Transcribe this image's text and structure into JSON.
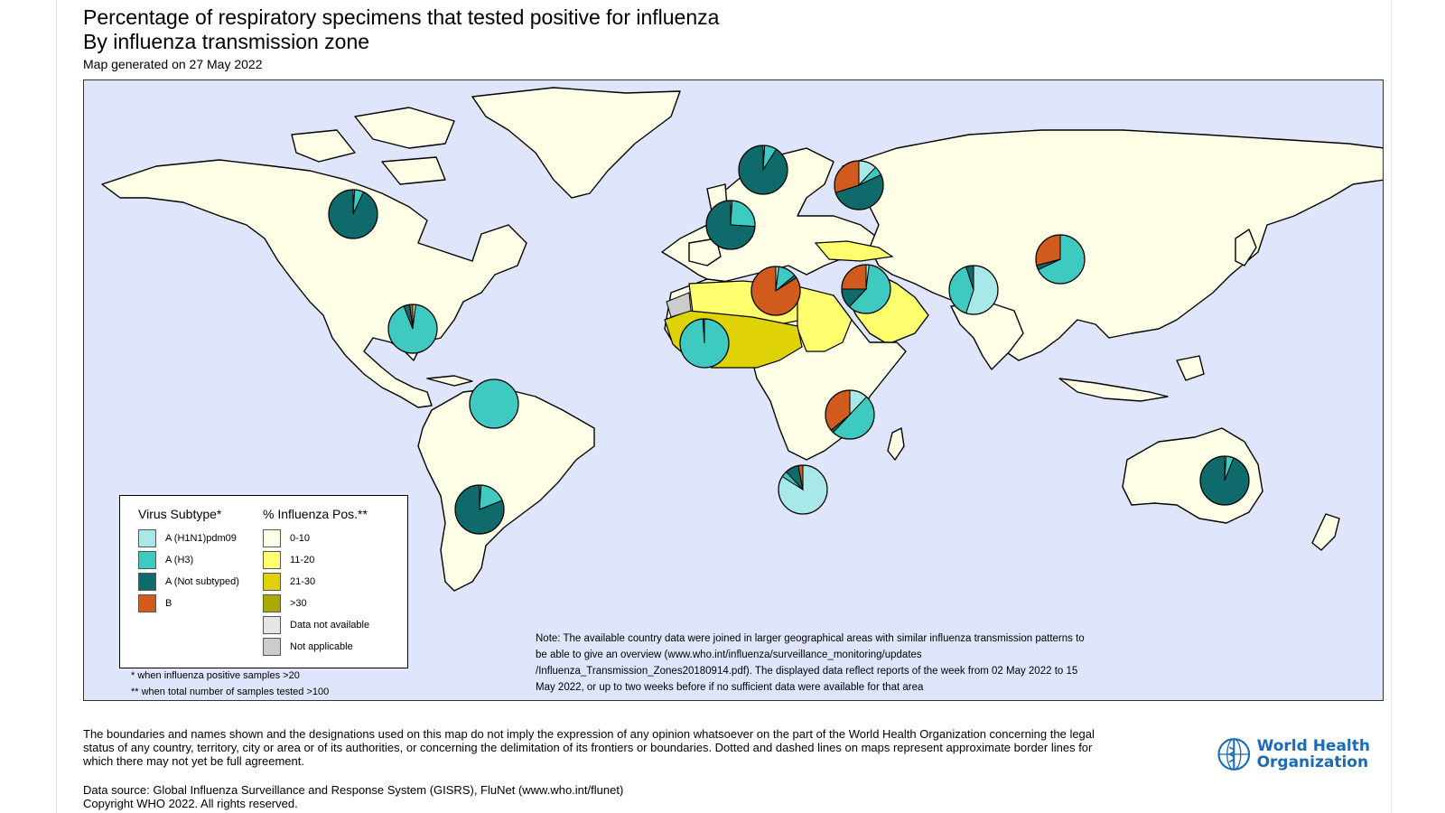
{
  "header": {
    "title_line1": "Percentage of respiratory specimens that tested positive for influenza",
    "title_line2": "By influenza transmission zone",
    "generated": "Map generated on 27 May 2022"
  },
  "colors": {
    "ocean": "#dfe6fb",
    "land_0_10": "#fefde5",
    "pos_11_20": "#fefe6e",
    "pos_21_30": "#dfd206",
    "pos_gt30": "#a9a900",
    "data_not_available": "#e6e6e6",
    "not_applicable": "#cccccc",
    "h1n1": "#a8e8e8",
    "h3": "#3ec9c1",
    "not_subtyped": "#0f6a6b",
    "b": "#d15b1c"
  },
  "zones": [
    {
      "name": "Western Africa",
      "category": "21-30"
    },
    {
      "name": "Northern Africa",
      "category": "11-20"
    },
    {
      "name": "Middle Africa",
      "category": "11-20"
    },
    {
      "name": "Western Asia",
      "category": "11-20"
    }
  ],
  "pies": [
    {
      "region": "North America",
      "h1n1": 1,
      "h3": 6,
      "not_subtyped": 93,
      "b": 0
    },
    {
      "region": "Central America and Caribbean",
      "h1n1": 2,
      "h3": 92,
      "not_subtyped": 4,
      "b": 2
    },
    {
      "region": "Tropical South America",
      "h1n1": 0,
      "h3": 100,
      "not_subtyped": 0,
      "b": 0
    },
    {
      "region": "Temperate South America",
      "h1n1": 1,
      "h3": 18,
      "not_subtyped": 81,
      "b": 0
    },
    {
      "region": "Northern Europe",
      "h1n1": 1,
      "h3": 8,
      "not_subtyped": 91,
      "b": 0
    },
    {
      "region": "South West Europe",
      "h1n1": 1,
      "h3": 25,
      "not_subtyped": 74,
      "b": 0
    },
    {
      "region": "Eastern Europe",
      "h1n1": 12,
      "h3": 6,
      "not_subtyped": 52,
      "b": 30
    },
    {
      "region": "Northern Africa",
      "h1n1": 2,
      "h3": 12,
      "not_subtyped": 2,
      "b": 84
    },
    {
      "region": "Western Africa",
      "h1n1": 0,
      "h3": 99,
      "not_subtyped": 1,
      "b": 0
    },
    {
      "region": "Western Asia",
      "h1n1": 2,
      "h3": 60,
      "not_subtyped": 13,
      "b": 25
    },
    {
      "region": "Southern Asia",
      "h1n1": 55,
      "h3": 40,
      "not_subtyped": 5,
      "b": 0
    },
    {
      "region": "Eastern Asia",
      "h1n1": 0,
      "h3": 68,
      "not_subtyped": 3,
      "b": 29
    },
    {
      "region": "Eastern Africa",
      "h1n1": 12,
      "h3": 50,
      "not_subtyped": 2,
      "b": 36
    },
    {
      "region": "Southern Africa",
      "h1n1": 84,
      "h3": 4,
      "not_subtyped": 9,
      "b": 3
    },
    {
      "region": "Oceania",
      "h1n1": 1,
      "h3": 5,
      "not_subtyped": 94,
      "b": 0
    }
  ],
  "legend": {
    "subtype_title": "Virus Subtype*",
    "pos_title": "% Influenza Pos.**",
    "subtypes": [
      {
        "label": "A (H1N1)pdm09",
        "color": "#a8e8e8"
      },
      {
        "label": "A (H3)",
        "color": "#3ec9c1"
      },
      {
        "label": "A (Not subtyped)",
        "color": "#0f6a6b"
      },
      {
        "label": "B",
        "color": "#d15b1c"
      }
    ],
    "positivity": [
      {
        "label": "0-10",
        "color": "#fefde5"
      },
      {
        "label": "11-20",
        "color": "#fefe6e"
      },
      {
        "label": "21-30",
        "color": "#dfd206"
      },
      {
        "label": ">30",
        "color": "#a9a900"
      },
      {
        "label": "Data not available",
        "color": "#e6e6e6"
      },
      {
        "label": "Not applicable",
        "color": "#cccccc"
      }
    ]
  },
  "footnotes": {
    "f1": "* when influenza positive samples >20",
    "f2": "** when total number of samples tested >100"
  },
  "note": "Note: The available country data were joined in larger geographical areas with similar influenza transmission patterns to be able to give an overview (www.who.int/influenza/surveillance_monitoring/updates /Influenza_Transmission_Zones20180914.pdf). The displayed data reflect reports of the week from 02 May 2022 to 15 May 2022, or up to two weeks before if no sufficient data were available for that area",
  "disclaimer": "The boundaries and names shown and the designations used on this map do not imply the expression of any opinion whatsoever on the part of the World Health Organization concerning the legal status of any country, territory, city or area or of its authorities, or concerning the delimitation of its frontiers or boundaries. Dotted and dashed lines on maps represent approximate border lines for which there may not yet be full agreement.",
  "source_line1": "Data source: Global Influenza Surveillance and Response System (GISRS), FluNet (www.who.int/flunet)",
  "source_line2": "Copyright WHO 2022. All rights reserved.",
  "logo": {
    "line1": "World Health",
    "line2": "Organization",
    "icon": "who-emblem-icon"
  }
}
